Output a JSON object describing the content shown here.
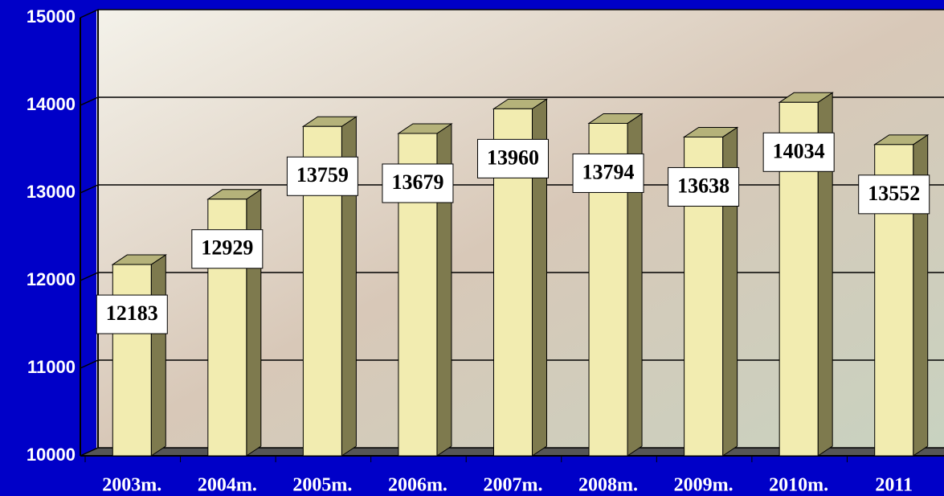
{
  "chart_data": {
    "type": "bar",
    "categories": [
      "2003m.",
      "2004m.",
      "2005m.",
      "2006m.",
      "2007m.",
      "2008m.",
      "2009m.",
      "2010m.",
      "2011"
    ],
    "values": [
      12183,
      12929,
      13759,
      13679,
      13960,
      13794,
      13638,
      14034,
      13552
    ],
    "color": "#f2ecb0",
    "ylim": [
      10000,
      15000
    ],
    "yticks": [
      10000,
      11000,
      12000,
      13000,
      14000,
      15000
    ],
    "grid": true
  }
}
